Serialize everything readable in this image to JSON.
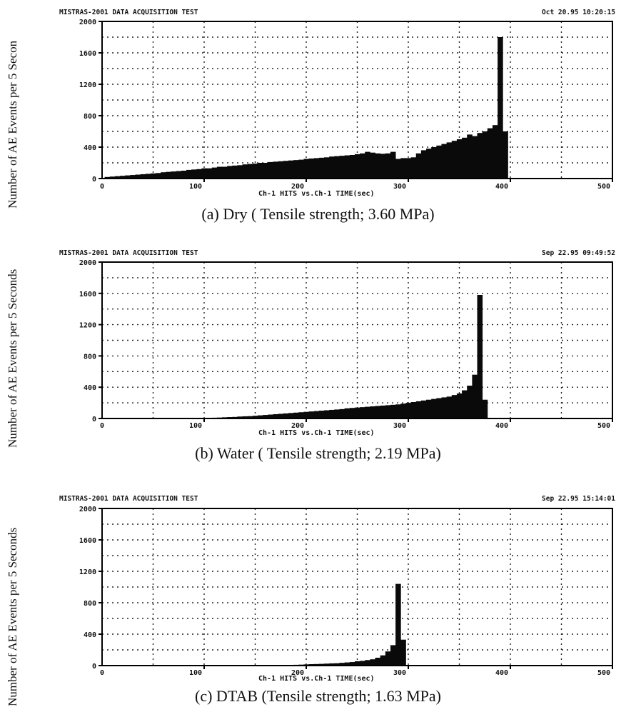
{
  "y_axis_label": "Number of AE Events per 5 Seconds",
  "chart_data": [
    {
      "type": "bar",
      "header_left": "MISTRAS-2001 DATA ACQUISITION TEST",
      "header_right": "Oct 20.95 10:20:15",
      "xlabel": "Ch-1 HITS vs.Ch-1 TIME(sec)",
      "ylabel_visible": "Number of AE Events per 5 Secon",
      "caption": "(a)  Dry  ( Tensile strength; 3.60 MPa)",
      "xlim": [
        0,
        500
      ],
      "ylim": [
        0,
        2000
      ],
      "x_ticks": [
        100,
        200,
        300,
        400,
        500
      ],
      "x_zero_tick": "0",
      "y_ticks": [
        0,
        400,
        800,
        1200,
        1600,
        2000
      ],
      "y_tick_labels": [
        "0",
        "400",
        "800",
        "1200",
        "1600",
        "2000"
      ],
      "bin_width": 5,
      "x": [
        5,
        10,
        15,
        20,
        25,
        30,
        35,
        40,
        45,
        50,
        55,
        60,
        65,
        70,
        75,
        80,
        85,
        90,
        95,
        100,
        105,
        110,
        115,
        120,
        125,
        130,
        135,
        140,
        145,
        150,
        155,
        160,
        165,
        170,
        175,
        180,
        185,
        190,
        195,
        200,
        205,
        210,
        215,
        220,
        225,
        230,
        235,
        240,
        245,
        250,
        255,
        260,
        265,
        270,
        275,
        280,
        285,
        290,
        295,
        300,
        305,
        310,
        315,
        320,
        325,
        330,
        335,
        340,
        345,
        350,
        355,
        360,
        365,
        370,
        375,
        380,
        385,
        390,
        395
      ],
      "values": [
        20,
        25,
        30,
        35,
        40,
        45,
        50,
        55,
        60,
        65,
        70,
        80,
        85,
        90,
        95,
        100,
        110,
        115,
        120,
        130,
        130,
        140,
        150,
        150,
        160,
        165,
        170,
        180,
        185,
        190,
        200,
        200,
        210,
        215,
        220,
        225,
        230,
        235,
        240,
        250,
        255,
        260,
        265,
        270,
        280,
        285,
        290,
        295,
        300,
        310,
        320,
        340,
        330,
        320,
        315,
        320,
        340,
        250,
        260,
        260,
        270,
        320,
        360,
        380,
        400,
        420,
        440,
        460,
        480,
        500,
        520,
        560,
        540,
        580,
        600,
        640,
        680,
        1800,
        600
      ]
    },
    {
      "type": "bar",
      "header_left": "MISTRAS-2001 DATA ACQUISITION TEST",
      "header_right": "Sep 22.95 09:49:52",
      "xlabel": "Ch-1 HITS vs.Ch-1 TIME(sec)",
      "caption": "(b)  Water  ( Tensile strength; 2.19 MPa)",
      "xlim": [
        0,
        500
      ],
      "ylim": [
        0,
        2000
      ],
      "x_ticks": [
        100,
        200,
        300,
        400,
        500
      ],
      "x_zero_tick": "0",
      "y_ticks": [
        0,
        400,
        800,
        1200,
        1600,
        2000
      ],
      "y_tick_labels": [
        "0",
        "400",
        "800",
        "1200",
        "1600",
        "2000"
      ],
      "bin_width": 5,
      "x": [
        100,
        105,
        110,
        115,
        120,
        125,
        130,
        135,
        140,
        145,
        150,
        155,
        160,
        165,
        170,
        175,
        180,
        185,
        190,
        195,
        200,
        205,
        210,
        215,
        220,
        225,
        230,
        235,
        240,
        245,
        250,
        255,
        260,
        265,
        270,
        275,
        280,
        285,
        290,
        295,
        300,
        305,
        310,
        315,
        320,
        325,
        330,
        335,
        340,
        345,
        350,
        355,
        360,
        365,
        370,
        375
      ],
      "values": [
        5,
        8,
        10,
        12,
        15,
        18,
        20,
        25,
        28,
        30,
        35,
        40,
        45,
        50,
        55,
        60,
        65,
        70,
        75,
        80,
        85,
        90,
        95,
        100,
        105,
        110,
        115,
        120,
        130,
        135,
        140,
        145,
        150,
        155,
        160,
        165,
        170,
        175,
        180,
        190,
        200,
        210,
        220,
        230,
        240,
        250,
        260,
        270,
        280,
        300,
        320,
        360,
        420,
        560,
        1580,
        240
      ]
    },
    {
      "type": "bar",
      "header_left": "MISTRAS-2001 DATA ACQUISITION TEST",
      "header_right": "Sep 22.95 15:14:01",
      "xlabel": "Ch-1 HITS vs.Ch-1 TIME(sec)",
      "caption": "(c)  DTAB  (Tensile strength; 1.63 MPa)",
      "xlim": [
        0,
        500
      ],
      "ylim": [
        0,
        2000
      ],
      "x_ticks": [
        100,
        200,
        300,
        400,
        500
      ],
      "x_zero_tick": "0",
      "y_ticks": [
        0,
        400,
        800,
        1200,
        1600,
        2000
      ],
      "y_tick_labels": [
        "0",
        "400",
        "800",
        "1200",
        "1600",
        "2000"
      ],
      "bin_width": 5,
      "x": [
        180,
        185,
        190,
        195,
        200,
        205,
        210,
        215,
        220,
        225,
        230,
        235,
        240,
        245,
        250,
        255,
        260,
        265,
        270,
        275,
        280,
        285,
        290,
        295
      ],
      "values": [
        5,
        8,
        10,
        12,
        15,
        18,
        20,
        22,
        25,
        28,
        30,
        35,
        40,
        45,
        55,
        60,
        70,
        80,
        100,
        130,
        180,
        260,
        1040,
        330
      ]
    }
  ]
}
